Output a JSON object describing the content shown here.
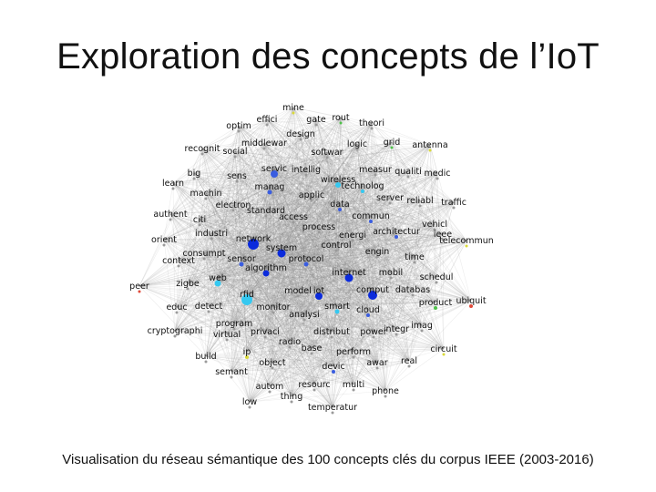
{
  "slide": {
    "title": "Exploration des concepts de l’IoT",
    "caption": "Visualisation du réseau sémantique des 100 concepts clés du corpus IEEE (2003-2016)"
  },
  "graph": {
    "colors": {
      "edge": "#8a8a8a",
      "highlight_dark": "#0b2bdc",
      "highlight_mid": "#3a5de0",
      "highlight_light": "#35c8f0",
      "minor_green": "#4fc04a",
      "minor_yellow": "#d9d93a",
      "minor_red": "#e04a3a",
      "minor_gray": "#9a9a9a"
    },
    "nodes": [
      {
        "label": "mine",
        "color": "#d9d93a",
        "r": 1.5
      },
      {
        "label": "effici",
        "color": "#9a9a9a",
        "r": 1.5
      },
      {
        "label": "gate",
        "color": "#9a9a9a",
        "r": 1.5
      },
      {
        "label": "rout",
        "color": "#4fc04a",
        "r": 1.5
      },
      {
        "label": "theori",
        "color": "#9a9a9a",
        "r": 1.5
      },
      {
        "label": "optim",
        "color": "#9a9a9a",
        "r": 1.5
      },
      {
        "label": "design",
        "color": "#9a9a9a",
        "r": 1.5
      },
      {
        "label": "recognit",
        "color": "#9a9a9a",
        "r": 1.5
      },
      {
        "label": "social",
        "color": "#9a9a9a",
        "r": 1.5
      },
      {
        "label": "middlewar",
        "color": "#9a9a9a",
        "r": 1.5
      },
      {
        "label": "softwar",
        "color": "#9a9a9a",
        "r": 1.5
      },
      {
        "label": "logic",
        "color": "#9a9a9a",
        "r": 1.5
      },
      {
        "label": "grid",
        "color": "#4fc04a",
        "r": 1.5
      },
      {
        "label": "antenna",
        "color": "#d9d93a",
        "r": 1.5
      },
      {
        "label": "servic",
        "color": "#3a5de0",
        "r": 4
      },
      {
        "label": "big",
        "color": "#9a9a9a",
        "r": 1.5
      },
      {
        "label": "sens",
        "color": "#9a9a9a",
        "r": 1.5
      },
      {
        "label": "intellig",
        "color": "#9a9a9a",
        "r": 1.5
      },
      {
        "label": "wireless",
        "color": "#35c8f0",
        "r": 3
      },
      {
        "label": "measur",
        "color": "#9a9a9a",
        "r": 1.5
      },
      {
        "label": "qualiti",
        "color": "#9a9a9a",
        "r": 1.5
      },
      {
        "label": "medic",
        "color": "#9a9a9a",
        "r": 1.5
      },
      {
        "label": "learn",
        "color": "#9a9a9a",
        "r": 1.5
      },
      {
        "label": "manag",
        "color": "#3a5de0",
        "r": 2.5
      },
      {
        "label": "technolog",
        "color": "#35c8f0",
        "r": 2
      },
      {
        "label": "machin",
        "color": "#9a9a9a",
        "r": 1.5
      },
      {
        "label": "applic",
        "color": "#9a9a9a",
        "r": 1.5
      },
      {
        "label": "server",
        "color": "#9a9a9a",
        "r": 1.5
      },
      {
        "label": "reliabl",
        "color": "#9a9a9a",
        "r": 1.5
      },
      {
        "label": "traffic",
        "color": "#9a9a9a",
        "r": 1.5
      },
      {
        "label": "electron",
        "color": "#9a9a9a",
        "r": 1.5
      },
      {
        "label": "standard",
        "color": "#9a9a9a",
        "r": 1.5
      },
      {
        "label": "data",
        "color": "#3a5de0",
        "r": 2
      },
      {
        "label": "authent",
        "color": "#9a9a9a",
        "r": 1.5
      },
      {
        "label": "citi",
        "color": "#9a9a9a",
        "r": 1.5
      },
      {
        "label": "access",
        "color": "#9a9a9a",
        "r": 1.5
      },
      {
        "label": "commun",
        "color": "#3a5de0",
        "r": 2
      },
      {
        "label": "vehicl",
        "color": "#9a9a9a",
        "r": 1.5
      },
      {
        "label": "industri",
        "color": "#9a9a9a",
        "r": 1.5
      },
      {
        "label": "network",
        "color": "#0b2bdc",
        "r": 6
      },
      {
        "label": "process",
        "color": "#9a9a9a",
        "r": 1.5
      },
      {
        "label": "architectur",
        "color": "#3a5de0",
        "r": 2
      },
      {
        "label": "ieee",
        "color": "#9a9a9a",
        "r": 1.5
      },
      {
        "label": "energi",
        "color": "#9a9a9a",
        "r": 1.5
      },
      {
        "label": "orient",
        "color": "#9a9a9a",
        "r": 1.5
      },
      {
        "label": "system",
        "color": "#0b2bdc",
        "r": 4.5
      },
      {
        "label": "control",
        "color": "#9a9a9a",
        "r": 1.5
      },
      {
        "label": "telecommun",
        "color": "#d9d93a",
        "r": 1.5
      },
      {
        "label": "consumpt",
        "color": "#9a9a9a",
        "r": 1.5
      },
      {
        "label": "engin",
        "color": "#9a9a9a",
        "r": 1.5
      },
      {
        "label": "context",
        "color": "#9a9a9a",
        "r": 1.5
      },
      {
        "label": "time",
        "color": "#9a9a9a",
        "r": 1.5
      },
      {
        "label": "sensor",
        "color": "#3a5de0",
        "r": 2.5
      },
      {
        "label": "protocol",
        "color": "#3a5de0",
        "r": 2.5
      },
      {
        "label": "algorithm",
        "color": "#0b2bdc",
        "r": 3.5
      },
      {
        "label": "mobil",
        "color": "#9a9a9a",
        "r": 1.5
      },
      {
        "label": "internet",
        "color": "#0b2bdc",
        "r": 4.5
      },
      {
        "label": "schedul",
        "color": "#9a9a9a",
        "r": 1.5
      },
      {
        "label": "web",
        "color": "#35c8f0",
        "r": 3.5
      },
      {
        "label": "zigbe",
        "color": "#9a9a9a",
        "r": 1.5
      },
      {
        "label": "peer",
        "color": "#e04a3a",
        "r": 1.5
      },
      {
        "label": "comput",
        "color": "#0b2bdc",
        "r": 5
      },
      {
        "label": "rfid",
        "color": "#35c8f0",
        "r": 6
      },
      {
        "label": "iot",
        "color": "#0b2bdc",
        "r": 4
      },
      {
        "label": "model",
        "color": "#9a9a9a",
        "r": 1.5
      },
      {
        "label": "databas",
        "color": "#9a9a9a",
        "r": 1.5
      },
      {
        "label": "product",
        "color": "#4fc04a",
        "r": 2
      },
      {
        "label": "ubiquit",
        "color": "#e04a3a",
        "r": 2
      },
      {
        "label": "educ",
        "color": "#9a9a9a",
        "r": 1.5
      },
      {
        "label": "detect",
        "color": "#9a9a9a",
        "r": 1.5
      },
      {
        "label": "monitor",
        "color": "#9a9a9a",
        "r": 1.5
      },
      {
        "label": "smart",
        "color": "#35c8f0",
        "r": 2.5
      },
      {
        "label": "cloud",
        "color": "#3a5de0",
        "r": 2
      },
      {
        "label": "analysi",
        "color": "#9a9a9a",
        "r": 1.5
      },
      {
        "label": "program",
        "color": "#9a9a9a",
        "r": 1.5
      },
      {
        "label": "imag",
        "color": "#9a9a9a",
        "r": 1.5
      },
      {
        "label": "cryptographi",
        "color": "#9a9a9a",
        "r": 1.5
      },
      {
        "label": "virtual",
        "color": "#9a9a9a",
        "r": 1.5
      },
      {
        "label": "privaci",
        "color": "#9a9a9a",
        "r": 1.5
      },
      {
        "label": "distribut",
        "color": "#9a9a9a",
        "r": 1.5
      },
      {
        "label": "power",
        "color": "#9a9a9a",
        "r": 1.5
      },
      {
        "label": "integr",
        "color": "#9a9a9a",
        "r": 1.5
      },
      {
        "label": "radio",
        "color": "#9a9a9a",
        "r": 1.5
      },
      {
        "label": "base",
        "color": "#9a9a9a",
        "r": 1.5
      },
      {
        "label": "perform",
        "color": "#9a9a9a",
        "r": 1.5
      },
      {
        "label": "circuit",
        "color": "#d9d93a",
        "r": 1.5
      },
      {
        "label": "build",
        "color": "#9a9a9a",
        "r": 1.5
      },
      {
        "label": "ip",
        "color": "#d9d93a",
        "r": 2
      },
      {
        "label": "awar",
        "color": "#9a9a9a",
        "r": 1.5
      },
      {
        "label": "real",
        "color": "#9a9a9a",
        "r": 1.5
      },
      {
        "label": "object",
        "color": "#9a9a9a",
        "r": 1.5
      },
      {
        "label": "semant",
        "color": "#9a9a9a",
        "r": 1.5
      },
      {
        "label": "devic",
        "color": "#3a5de0",
        "r": 2
      },
      {
        "label": "autom",
        "color": "#9a9a9a",
        "r": 1.5
      },
      {
        "label": "resourc",
        "color": "#9a9a9a",
        "r": 1.5
      },
      {
        "label": "multi",
        "color": "#9a9a9a",
        "r": 1.5
      },
      {
        "label": "phone",
        "color": "#9a9a9a",
        "r": 1.5
      },
      {
        "label": "thing",
        "color": "#9a9a9a",
        "r": 1.5
      },
      {
        "label": "low",
        "color": "#9a9a9a",
        "r": 1.5
      },
      {
        "label": "temperatur",
        "color": "#9a9a9a",
        "r": 1.5
      }
    ]
  }
}
